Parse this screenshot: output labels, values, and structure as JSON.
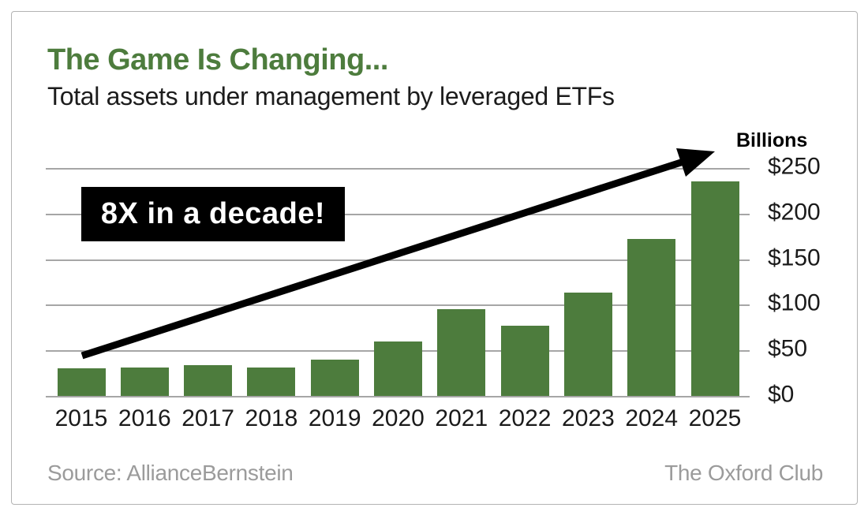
{
  "header": {
    "title": "The Game Is Changing...",
    "subtitle": "Total assets under management by leveraged ETFs"
  },
  "footer": {
    "source": "Source: AllianceBernstein",
    "brand": "The Oxford Club"
  },
  "colors": {
    "bar_green": "#4d7c3d",
    "title_green": "#4d7c3d",
    "grid_gray": "#a6a6a6",
    "muted_text": "#9b9b9b",
    "annotation_bg": "#000000",
    "annotation_text": "#ffffff",
    "arrow_black": "#000000"
  },
  "chart_data": {
    "type": "bar",
    "title": "The Game Is Changing...",
    "subtitle": "Total assets under management by leveraged ETFs",
    "unit_label": "Billions",
    "annotation": "8X in a decade!",
    "categories": [
      "2015",
      "2016",
      "2017",
      "2018",
      "2019",
      "2020",
      "2021",
      "2022",
      "2023",
      "2024",
      "2025"
    ],
    "values": [
      30,
      31,
      34,
      31,
      40,
      60,
      95,
      77,
      113,
      172,
      235
    ],
    "xlabel": "",
    "ylabel": "Billions",
    "ylim": [
      0,
      250
    ],
    "yticks": [
      0,
      50,
      100,
      150,
      200,
      250
    ],
    "ytick_labels": [
      "$0",
      "$50",
      "$100",
      "$150",
      "$200",
      "$250"
    ],
    "grid": true,
    "legend": false,
    "bar_color": "#4d7c3d",
    "trend_arrow": "rising left-to-right across decade"
  }
}
